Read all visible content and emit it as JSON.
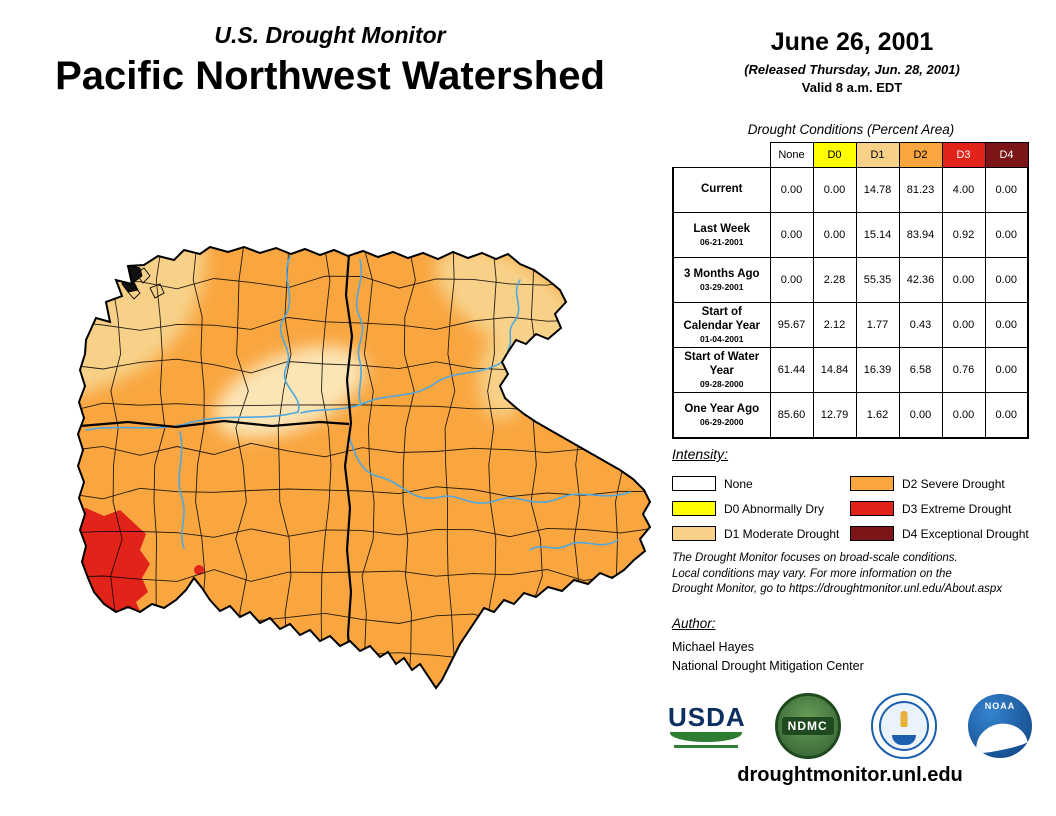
{
  "header": {
    "supertitle": "U.S. Drought Monitor",
    "title": "Pacific Northwest Watershed",
    "date": "June 26, 2001",
    "released": "(Released Thursday, Jun. 28, 2001)",
    "valid": "Valid 8 a.m. EDT"
  },
  "table": {
    "title": "Drought Conditions (Percent Area)",
    "columns": [
      {
        "label": "None",
        "bg": "#FFFFFF",
        "fg": "#000000"
      },
      {
        "label": "D0",
        "bg": "#FFFF00",
        "fg": "#000000"
      },
      {
        "label": "D1",
        "bg": "#F8D189",
        "fg": "#000000"
      },
      {
        "label": "D2",
        "bg": "#F9A640",
        "fg": "#000000"
      },
      {
        "label": "D3",
        "bg": "#E2231A",
        "fg": "#FFFFFF"
      },
      {
        "label": "D4",
        "bg": "#7B1518",
        "fg": "#FFFFFF"
      }
    ],
    "rows": [
      {
        "label": "Current",
        "sublabel": "",
        "values": [
          "0.00",
          "0.00",
          "14.78",
          "81.23",
          "4.00",
          "0.00"
        ]
      },
      {
        "label": "Last Week",
        "sublabel": "06-21-2001",
        "values": [
          "0.00",
          "0.00",
          "15.14",
          "83.94",
          "0.92",
          "0.00"
        ]
      },
      {
        "label": "3 Months Ago",
        "sublabel": "03-29-2001",
        "values": [
          "0.00",
          "2.28",
          "55.35",
          "42.36",
          "0.00",
          "0.00"
        ]
      },
      {
        "label": "Start of Calendar Year",
        "sublabel": "01-04-2001",
        "values": [
          "95.67",
          "2.12",
          "1.77",
          "0.43",
          "0.00",
          "0.00"
        ]
      },
      {
        "label": "Start of Water Year",
        "sublabel": "09-28-2000",
        "values": [
          "61.44",
          "14.84",
          "16.39",
          "6.58",
          "0.76",
          "0.00"
        ]
      },
      {
        "label": "One Year Ago",
        "sublabel": "06-29-2000",
        "values": [
          "85.60",
          "12.79",
          "1.62",
          "0.00",
          "0.00",
          "0.00"
        ]
      }
    ]
  },
  "legend": {
    "title": "Intensity:",
    "items": [
      {
        "label": "None",
        "color": "#FFFFFF"
      },
      {
        "label": "D0 Abnormally Dry",
        "color": "#FFFF00"
      },
      {
        "label": "D1 Moderate Drought",
        "color": "#F8D189"
      },
      {
        "label": "D2 Severe Drought",
        "color": "#F9A640"
      },
      {
        "label": "D3 Extreme Drought",
        "color": "#E2231A"
      },
      {
        "label": "D4 Exceptional Drought",
        "color": "#7B1518"
      }
    ]
  },
  "disclaimer": {
    "lines": [
      "The Drought Monitor focuses on broad-scale conditions.",
      "Local conditions may vary. For more information on the",
      "Drought Monitor, go to https://droughtmonitor.unl.edu/About.aspx"
    ]
  },
  "author": {
    "title": "Author:",
    "name": "Michael Hayes",
    "org": "National Drought Mitigation Center"
  },
  "logos": {
    "usda": "USDA",
    "ndmc": "NDMC",
    "noaa": "NOAA"
  },
  "footer": {
    "url": "droughtmonitor.unl.edu"
  },
  "map": {
    "colors": {
      "d1": "#F8D189",
      "d1_light": "#FBE4B5",
      "d2": "#F9A640",
      "d3": "#E2231A",
      "river": "#4FA7E0",
      "boundary": "#000000"
    }
  }
}
